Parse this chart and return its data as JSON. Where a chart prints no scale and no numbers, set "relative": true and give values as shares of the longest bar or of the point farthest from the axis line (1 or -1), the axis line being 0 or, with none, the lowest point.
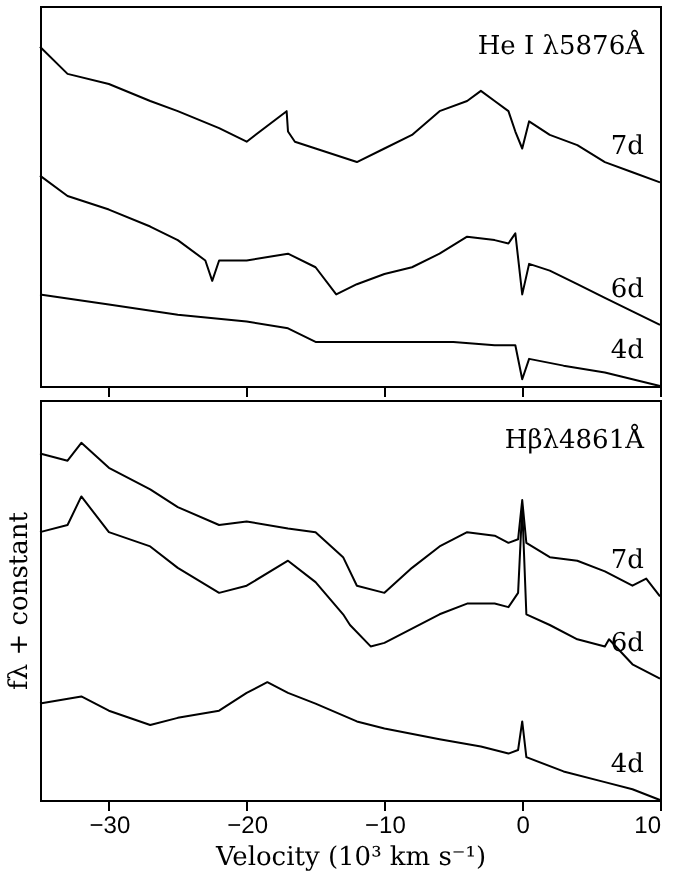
{
  "chart_data": [
    {
      "type": "line",
      "relative": true,
      "xlim": [
        -35,
        10
      ],
      "xticks": [
        -30,
        -20,
        -10,
        0,
        10
      ],
      "tick_labels": false,
      "annotations": [
        "He I λ5876Å"
      ],
      "series": [
        {
          "name": "7d",
          "color": "#000000",
          "x": [
            -35,
            -33,
            -30,
            -27,
            -25,
            -22,
            -20,
            -17.1,
            -17,
            -16.5,
            -15,
            -12,
            -10,
            -8,
            -6,
            -4,
            -3,
            -2,
            -1,
            -0.5,
            0,
            0.5,
            2,
            4,
            6,
            8,
            10
          ],
          "values": [
            1.0,
            0.92,
            0.89,
            0.84,
            0.81,
            0.76,
            0.72,
            0.81,
            0.75,
            0.72,
            0.7,
            0.66,
            0.7,
            0.74,
            0.81,
            0.84,
            0.87,
            0.84,
            0.81,
            0.75,
            0.7,
            0.78,
            0.74,
            0.71,
            0.66,
            0.63,
            0.6
          ]
        },
        {
          "name": "6d",
          "color": "#000000",
          "x": [
            -35,
            -33,
            -30,
            -27,
            -25,
            -23,
            -22.5,
            -22,
            -20,
            -17,
            -15,
            -13.5,
            -12,
            -10,
            -8,
            -6,
            -4,
            -2,
            -1,
            -0.5,
            0,
            0.5,
            2,
            4,
            6,
            8,
            10
          ],
          "values": [
            0.62,
            0.56,
            0.52,
            0.47,
            0.43,
            0.37,
            0.31,
            0.37,
            0.37,
            0.39,
            0.35,
            0.27,
            0.3,
            0.33,
            0.35,
            0.39,
            0.44,
            0.43,
            0.42,
            0.45,
            0.27,
            0.36,
            0.34,
            0.3,
            0.26,
            0.22,
            0.18
          ]
        },
        {
          "name": "4d",
          "color": "#000000",
          "x": [
            -35,
            -30,
            -25,
            -20,
            -17,
            -15,
            -10,
            -5,
            -2,
            -0.5,
            0,
            0.5,
            3,
            6,
            8,
            10
          ],
          "values": [
            0.27,
            0.24,
            0.21,
            0.19,
            0.17,
            0.13,
            0.13,
            0.13,
            0.12,
            0.12,
            0.02,
            0.08,
            0.06,
            0.04,
            0.02,
            0.0
          ]
        }
      ]
    },
    {
      "type": "line",
      "relative": true,
      "xlim": [
        -35,
        10
      ],
      "xticks": [
        -30,
        -20,
        -10,
        0,
        10
      ],
      "tick_labels": "x",
      "xlabel": "Velocity (10³ km s⁻¹)",
      "ylabel": "fλ + constant",
      "annotations": [
        "Hβλ4861Å"
      ],
      "series": [
        {
          "name": "7d",
          "color": "#000000",
          "x": [
            -35,
            -33,
            -32,
            -30,
            -27,
            -25,
            -22,
            -20,
            -17,
            -15,
            -13,
            -12,
            -10,
            -8,
            -6,
            -4,
            -2,
            -1,
            -0.3,
            0,
            0.3,
            2,
            4,
            6,
            8,
            9,
            10
          ],
          "values": [
            0.97,
            0.95,
            1.0,
            0.93,
            0.87,
            0.82,
            0.77,
            0.78,
            0.76,
            0.75,
            0.68,
            0.6,
            0.58,
            0.65,
            0.71,
            0.75,
            0.74,
            0.72,
            0.73,
            0.84,
            0.72,
            0.68,
            0.67,
            0.64,
            0.6,
            0.62,
            0.57
          ]
        },
        {
          "name": "6d",
          "color": "#000000",
          "x": [
            -35,
            -33,
            -32,
            -30,
            -27,
            -25,
            -22,
            -20,
            -17,
            -15,
            -13,
            -12.5,
            -11,
            -10,
            -8,
            -6,
            -4,
            -2,
            -1,
            -0.3,
            0,
            0.3,
            2,
            4,
            6,
            6.3,
            8,
            10
          ],
          "values": [
            0.75,
            0.77,
            0.85,
            0.75,
            0.71,
            0.65,
            0.58,
            0.6,
            0.67,
            0.61,
            0.52,
            0.49,
            0.43,
            0.44,
            0.48,
            0.52,
            0.55,
            0.55,
            0.54,
            0.58,
            0.82,
            0.52,
            0.49,
            0.45,
            0.43,
            0.45,
            0.38,
            0.34
          ]
        },
        {
          "name": "4d",
          "color": "#000000",
          "x": [
            -35,
            -32,
            -30,
            -27,
            -25,
            -22,
            -20,
            -18.5,
            -17,
            -15,
            -12,
            -10,
            -6,
            -3,
            -1,
            -0.3,
            0,
            0.3,
            3,
            6,
            8,
            10
          ],
          "values": [
            0.27,
            0.29,
            0.25,
            0.21,
            0.23,
            0.25,
            0.3,
            0.33,
            0.3,
            0.27,
            0.22,
            0.2,
            0.17,
            0.15,
            0.13,
            0.14,
            0.22,
            0.12,
            0.08,
            0.05,
            0.03,
            0.0
          ]
        }
      ]
    }
  ]
}
